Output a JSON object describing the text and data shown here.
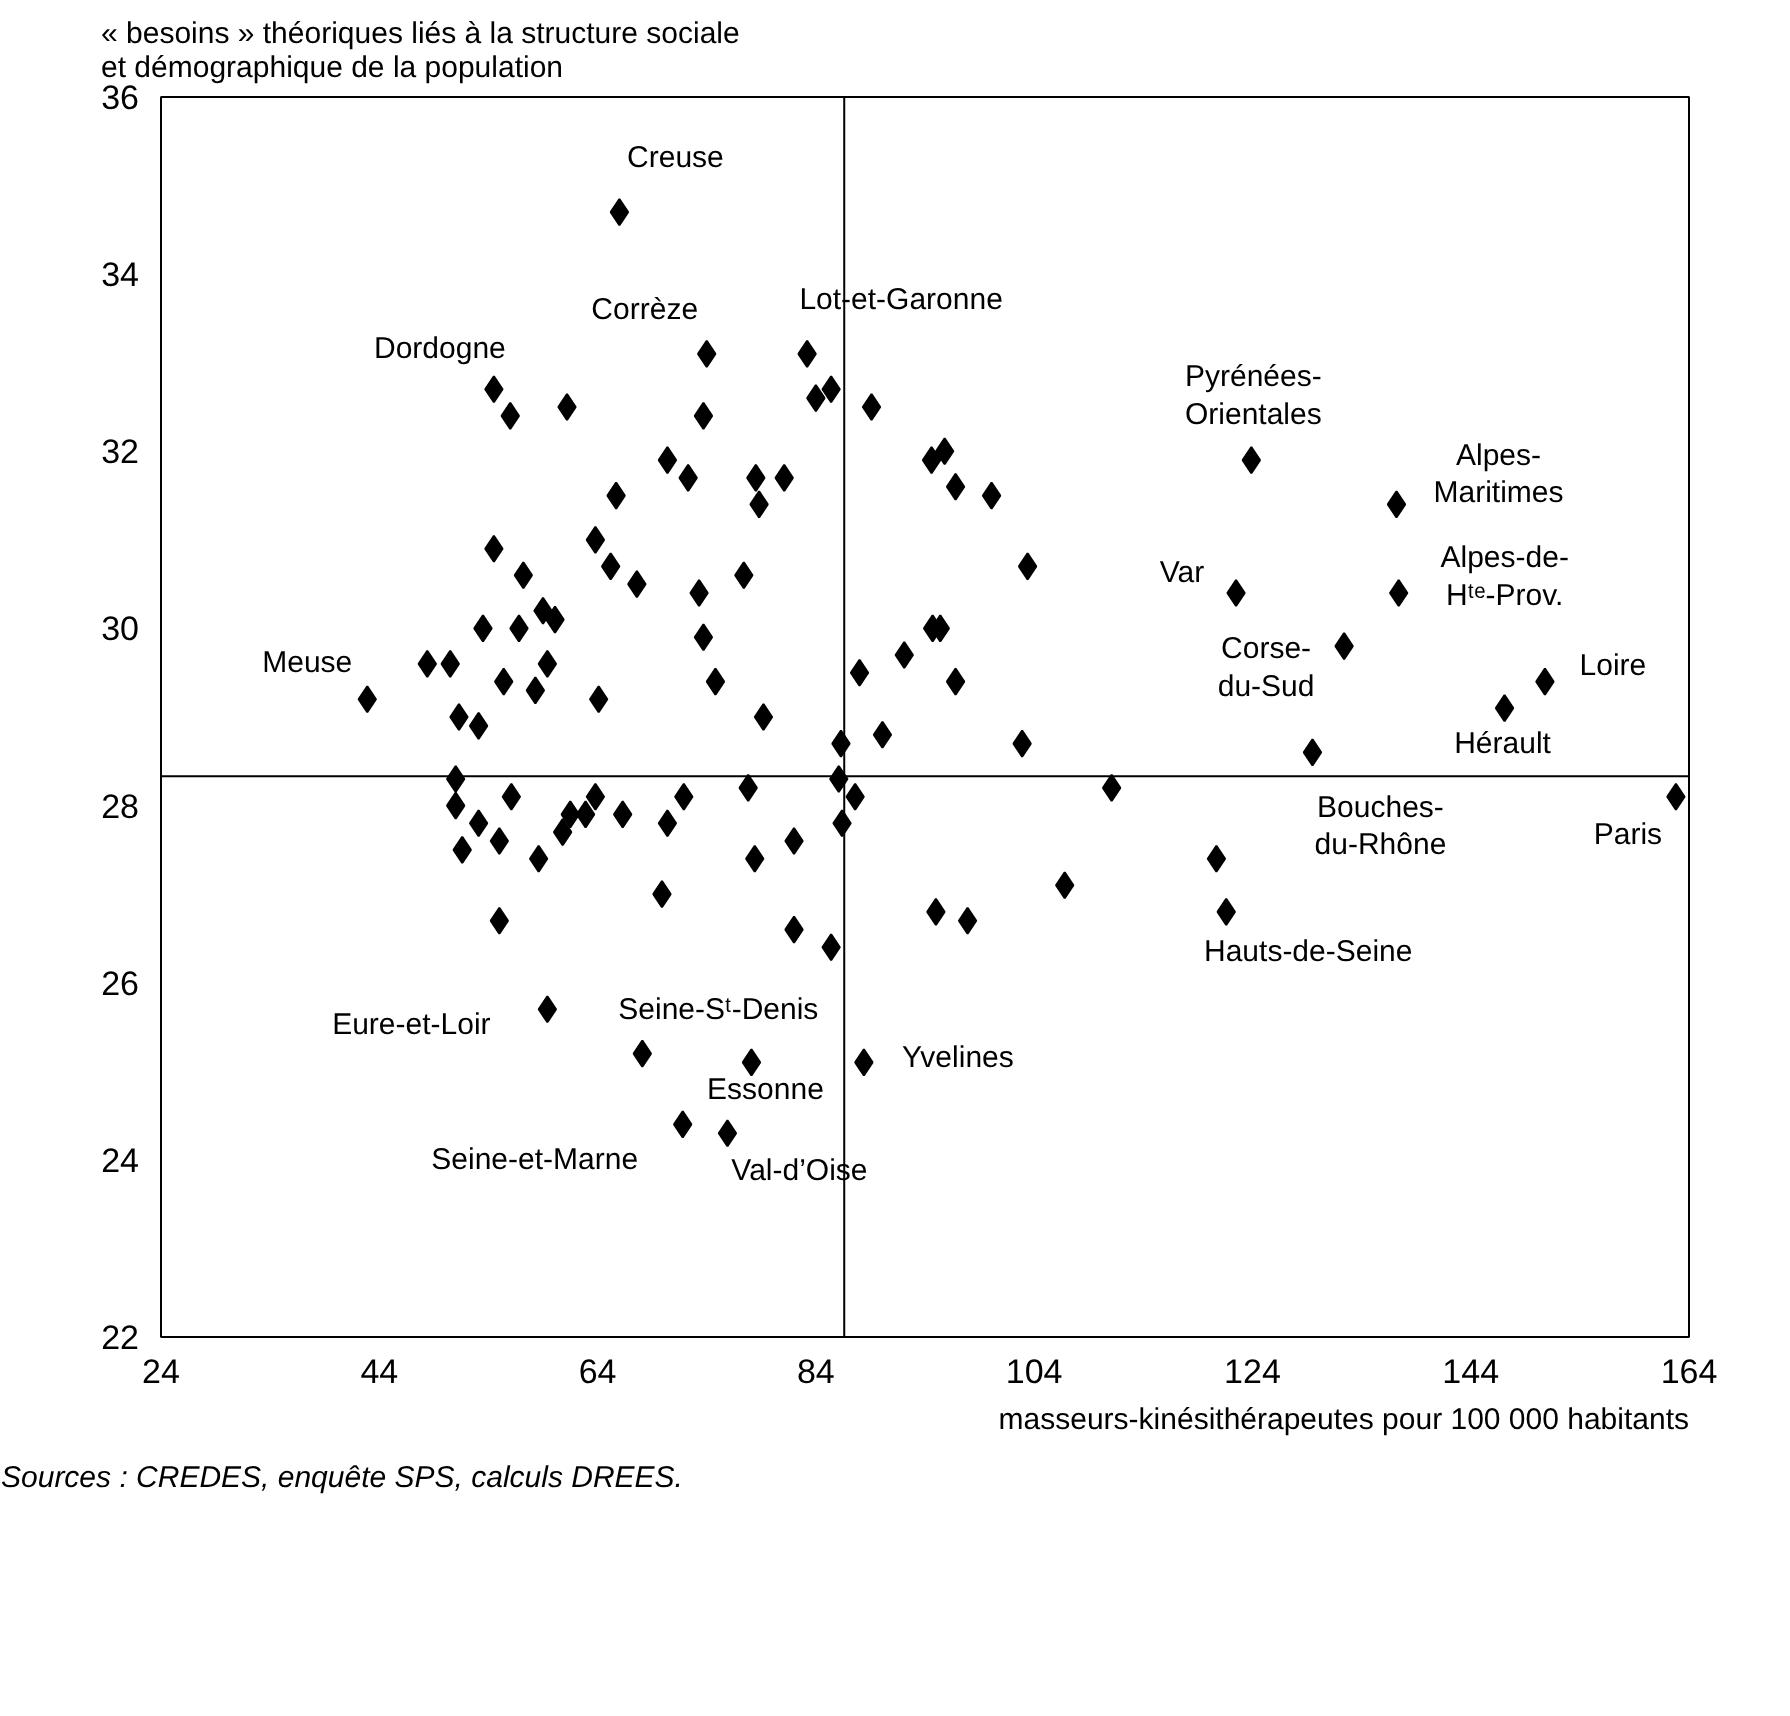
{
  "chart_data": {
    "type": "scatter",
    "ylabel": "« besoins » théoriques liés à la structure sociale\net démographique de la population",
    "xlabel": "masseurs-kinésithérapeutes pour 100 000 habitants",
    "xlim": [
      24,
      164
    ],
    "xticks": [
      24,
      44,
      64,
      84,
      104,
      124,
      144,
      164
    ],
    "ylim": [
      22,
      36
    ],
    "yticks": [
      22,
      24,
      26,
      28,
      30,
      32,
      34,
      36
    ],
    "grid": false,
    "marker": "diamond",
    "series": [
      {
        "color": "#000000",
        "x": [
          66.0,
          74.0,
          83.2,
          85.4,
          84.0,
          89.1,
          54.5,
          56.0,
          61.2,
          73.7,
          70.4,
          72.3,
          78.5,
          81.1,
          78.8,
          65.7,
          54.5,
          63.8,
          57.2,
          65.2,
          67.6,
          73.3,
          77.4,
          59.0,
          60.1,
          53.5,
          56.8,
          73.7,
          42.9,
          48.4,
          50.5,
          55.4,
          59.4,
          58.3,
          64.1,
          74.8,
          88.0,
          51.3,
          53.1,
          79.2,
          86.3,
          90.1,
          51.0,
          51.0,
          53.1,
          56.1,
          51.6,
          55.0,
          58.6,
          55.0,
          60.8,
          61.5,
          62.9,
          63.8,
          66.3,
          70.4,
          71.9,
          69.9,
          77.8,
          78.4,
          82.0,
          86.1,
          87.6,
          86.4,
          82.0,
          85.4,
          59.4,
          68.1,
          78.1,
          88.4,
          71.8,
          75.9,
          94.6,
          95.8,
          96.8,
          100.1,
          103.4,
          94.7,
          95.4,
          92.1,
          96.8,
          102.9,
          123.9,
          137.2,
          122.5,
          137.4,
          132.4,
          150.8,
          147.1,
          129.5,
          111.1,
          120.7,
          121.6,
          106.8,
          95.0,
          97.9,
          162.8
        ],
        "values": [
          34.7,
          33.1,
          33.1,
          32.7,
          32.6,
          32.5,
          32.7,
          32.4,
          32.5,
          32.4,
          31.9,
          31.7,
          31.7,
          31.7,
          31.4,
          31.5,
          30.9,
          31.0,
          30.6,
          30.7,
          30.5,
          30.4,
          30.6,
          30.2,
          30.1,
          30.0,
          30.0,
          29.9,
          29.2,
          29.6,
          29.6,
          29.4,
          29.6,
          29.3,
          29.2,
          29.4,
          29.5,
          29.0,
          28.9,
          29.0,
          28.7,
          28.8,
          28.3,
          28.0,
          27.8,
          28.1,
          27.5,
          27.6,
          27.4,
          26.7,
          27.7,
          27.9,
          27.9,
          28.1,
          27.9,
          27.8,
          28.1,
          27.0,
          28.2,
          27.4,
          27.6,
          28.3,
          28.1,
          27.8,
          26.6,
          26.4,
          25.7,
          25.2,
          25.1,
          25.1,
          24.4,
          24.3,
          31.9,
          32.0,
          31.6,
          31.5,
          30.7,
          30.0,
          30.0,
          29.7,
          29.4,
          28.7,
          31.9,
          31.4,
          30.4,
          30.4,
          29.8,
          29.4,
          29.1,
          28.6,
          28.2,
          27.4,
          26.8,
          27.1,
          26.8,
          26.7,
          28.1
        ]
      }
    ],
    "ref_lines": [
      {
        "axis": "y",
        "value": 28.33,
        "color": "#000000"
      },
      {
        "axis": "x",
        "value": 86.6,
        "color": "#000000"
      }
    ],
    "annotations": [
      {
        "text": "Creuse",
        "x": 66.0,
        "y": 34.7
      },
      {
        "text": "Corrèze",
        "x": 74.0,
        "y": 33.1
      },
      {
        "text": "Dordogne",
        "x": 54.5,
        "y": 32.7
      },
      {
        "text": "Lot-et-Garonne",
        "x": 83.2,
        "y": 33.1
      },
      {
        "text": "Meuse",
        "x": 42.9,
        "y": 29.2
      },
      {
        "text": "Pyrénées-\nOrientales",
        "x": 123.9,
        "y": 31.9
      },
      {
        "text": "Alpes-\nMaritimes",
        "x": 137.2,
        "y": 31.4
      },
      {
        "text": "Var",
        "x": 122.5,
        "y": 30.4
      },
      {
        "text": "Alpes-de-\nHᵗᵉ-Prov.",
        "x": 137.4,
        "y": 30.4
      },
      {
        "text": "Corse-\ndu-Sud",
        "x": 132.4,
        "y": 29.8
      },
      {
        "text": "Loire",
        "x": 150.8,
        "y": 29.4
      },
      {
        "text": "Hérault",
        "x": 147.1,
        "y": 29.1
      },
      {
        "text": "Bouches-\ndu-Rhône",
        "x": 129.5,
        "y": 28.6
      },
      {
        "text": "Paris",
        "x": 162.8,
        "y": 28.1
      },
      {
        "text": "Hauts-de-Seine",
        "x": 121.6,
        "y": 26.8
      },
      {
        "text": "Eure-et-Loir",
        "x": 59.4,
        "y": 25.7
      },
      {
        "text": "Seine-Sᵗ-Denis",
        "x": 68.1,
        "y": 25.2
      },
      {
        "text": "Essonne",
        "x": 78.1,
        "y": 25.1
      },
      {
        "text": "Yvelines",
        "x": 88.4,
        "y": 25.1
      },
      {
        "text": "Seine-et-Marne",
        "x": 71.8,
        "y": 24.4
      },
      {
        "text": "Val-d’Oise",
        "x": 75.9,
        "y": 24.3
      },
      "Sources : CREDES, enquête SPS, calculs DREES."
    ]
  }
}
